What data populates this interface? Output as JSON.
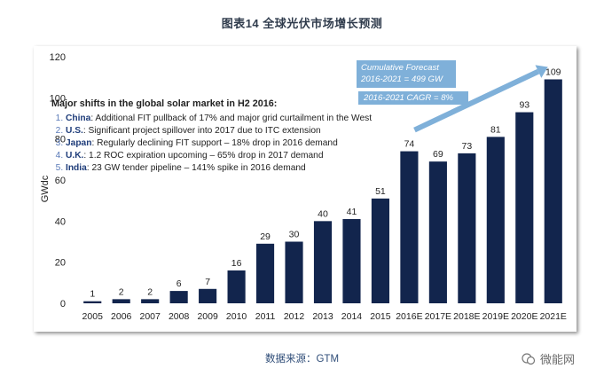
{
  "figure": {
    "title": "图表14  全球光伏市场增长预测",
    "source": "数据来源：GTM",
    "watermark": "微能网"
  },
  "chart_data": {
    "type": "bar",
    "ylabel": "GWdc",
    "xlabel": "",
    "ylim": [
      0,
      120
    ],
    "yticks": [
      0,
      20,
      40,
      60,
      80,
      100,
      120
    ],
    "categories": [
      "2005",
      "2006",
      "2007",
      "2008",
      "2009",
      "2010",
      "2011",
      "2012",
      "2013",
      "2014",
      "2015",
      "2016E",
      "2017E",
      "2018E",
      "2019E",
      "2020E",
      "2021E"
    ],
    "values": [
      1,
      2,
      2,
      6,
      7,
      16,
      29,
      30,
      40,
      41,
      51,
      74,
      69,
      73,
      81,
      93,
      109
    ],
    "bar_color": "#12254d",
    "notes_title": "Major shifts in the global solar market in H2 2016:",
    "notes": [
      {
        "country": "China",
        "text": ": Additional FIT pullback of 17% and major grid curtailment in the West"
      },
      {
        "country": "U.S.",
        "text": ": Significant project spillover into 2017 due to ITC extension"
      },
      {
        "country": "Japan",
        "text": ": Regularly declining FIT support – 18% drop in 2016 demand"
      },
      {
        "country": "U.K.",
        "text": ": 1.2 ROC expiration upcoming – 65% drop in 2017 demand"
      },
      {
        "country": "India",
        "text": ": 23 GW tender pipeline – 141% spike in 2016 demand"
      }
    ],
    "forecast_line1": "Cumulative Forecast",
    "forecast_line2": "2016-2021 = 499 GW",
    "cagr_label": "2016-2021 CAGR = 8%",
    "arrow_color": "#7fb0d9"
  }
}
